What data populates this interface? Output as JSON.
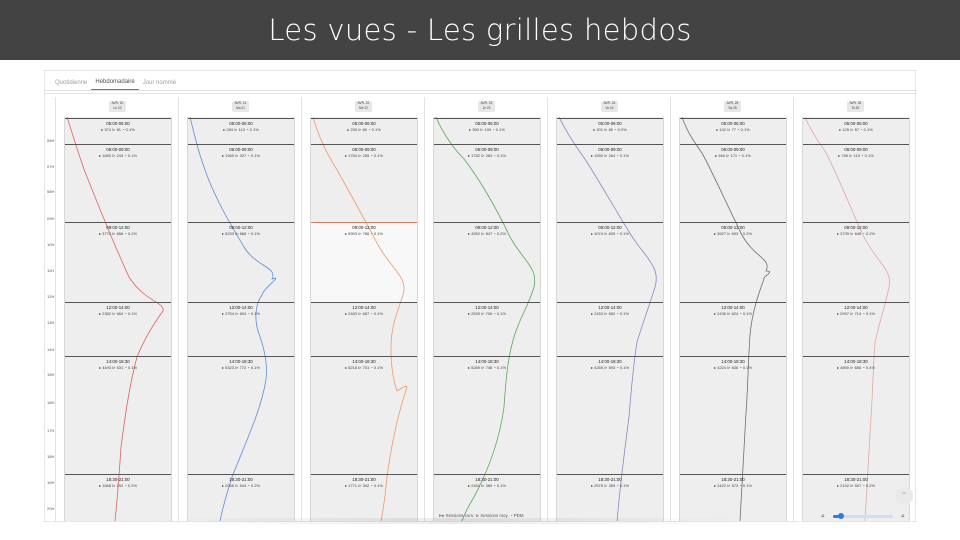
{
  "slide": {
    "title": "Les vues - Les grilles hebdos"
  },
  "tabs": [
    "Quotidienne",
    "Hebdomadaire",
    "Jour nommé"
  ],
  "active_tab": 1,
  "time_axis": [
    "06H",
    "07H",
    "08H",
    "09H",
    "10H",
    "11H",
    "12H",
    "13H",
    "14H",
    "15H",
    "16H",
    "17H",
    "18H",
    "19H",
    "20H"
  ],
  "days": [
    {
      "date": "AVR. 20",
      "label": "Lu 20",
      "color": "#d9655f",
      "bands": [
        {
          "time": "05:00-06:00",
          "cum": "374",
          "moy": "81",
          "pdm": "0.1%"
        },
        {
          "time": "06:00-09:00",
          "cum": "1680",
          "moy": "243",
          "pdm": "0.1%"
        },
        {
          "time": "09:00-12:00",
          "cum": "3774",
          "moy": "856",
          "pdm": "0.2%"
        },
        {
          "time": "12:00-14:00",
          "cum": "2382",
          "moy": "664",
          "pdm": "0.1%"
        },
        {
          "time": "14:00-18:30",
          "cum": "4493",
          "moy": "631",
          "pdm": "0.1%"
        },
        {
          "time": "18:30-21:00",
          "cum": "1668",
          "moy": "292",
          "pdm": "0.2%"
        }
      ]
    },
    {
      "date": "AVR. 21",
      "label": "Ma 21",
      "color": "#5d8ed3",
      "bands": [
        {
          "time": "05:00-06:00",
          "cum": "284",
          "moy": "113",
          "pdm": "0.1%"
        },
        {
          "time": "06:00-09:00",
          "cum": "1959",
          "moy": "327",
          "pdm": "0.1%"
        },
        {
          "time": "09:00-12:00",
          "cum": "5233",
          "moy": "868",
          "pdm": "0.1%"
        },
        {
          "time": "12:00-14:00",
          "cum": "2754",
          "moy": "694",
          "pdm": "0.1%"
        },
        {
          "time": "14:00-18:30",
          "cum": "5323",
          "moy": "772",
          "pdm": "0.1%"
        },
        {
          "time": "18:30-21:00",
          "cum": "2065",
          "moy": "544",
          "pdm": "0.2%"
        }
      ]
    },
    {
      "date": "AVR. 22",
      "label": "Me 22",
      "color": "#ee9a62",
      "bands": [
        {
          "time": "05:00-06:00",
          "cum": "230",
          "moy": "80",
          "pdm": "0.1%"
        },
        {
          "time": "06:00-09:00",
          "cum": "1754",
          "moy": "255",
          "pdm": "0.1%"
        },
        {
          "time": "09:00-12:00",
          "cum": "5993",
          "moy": "786",
          "pdm": "0.1%"
        },
        {
          "time": "12:00-14:00",
          "cum": "2463",
          "moy": "687",
          "pdm": "0.1%"
        },
        {
          "time": "14:00-18:30",
          "cum": "5218",
          "moy": "701",
          "pdm": "0.1%"
        },
        {
          "time": "18:30-21:00",
          "cum": "1771",
          "moy": "342",
          "pdm": "0.1%"
        }
      ]
    },
    {
      "date": "AVR. 23",
      "label": "Je 23",
      "color": "#5aa85a",
      "bands": [
        {
          "time": "05:00-06:00",
          "cum": "390",
          "moy": "100",
          "pdm": "0.1%"
        },
        {
          "time": "06:00-09:00",
          "cum": "1782",
          "moy": "283",
          "pdm": "0.1%"
        },
        {
          "time": "09:00-12:00",
          "cum": "4552",
          "moy": "847",
          "pdm": "0.2%"
        },
        {
          "time": "12:00-14:00",
          "cum": "2535",
          "moy": "705",
          "pdm": "0.1%"
        },
        {
          "time": "14:00-18:30",
          "cum": "5289",
          "moy": "748",
          "pdm": "0.1%"
        },
        {
          "time": "18:30-21:00",
          "cum": "2451",
          "moy": "380",
          "pdm": "0.1%"
        }
      ]
    },
    {
      "date": "AVR. 24",
      "label": "Ve 24",
      "color": "#8b86c4",
      "bands": [
        {
          "time": "05:00-06:00",
          "cum": "201",
          "moy": "80",
          "pdm": "0.0%"
        },
        {
          "time": "06:00-09:00",
          "cum": "1590",
          "moy": "264",
          "pdm": "0.1%"
        },
        {
          "time": "09:00-12:00",
          "cum": "4074",
          "moy": "845",
          "pdm": "0.1%"
        },
        {
          "time": "12:00-14:00",
          "cum": "2453",
          "moy": "682",
          "pdm": "0.1%"
        },
        {
          "time": "14:00-18:30",
          "cum": "4265",
          "moy": "693",
          "pdm": "0.1%"
        },
        {
          "time": "18:30-21:00",
          "cum": "2575",
          "moy": "359",
          "pdm": "0.1%"
        }
      ]
    },
    {
      "date": "AVR. 25",
      "label": "Sa 25",
      "color": "#6f6f6f",
      "bands": [
        {
          "time": "05:00-06:00",
          "cum": "142",
          "moy": "77",
          "pdm": "0.1%"
        },
        {
          "time": "06:00-09:00",
          "cum": "946",
          "moy": "171",
          "pdm": "0.1%"
        },
        {
          "time": "09:00-12:00",
          "cum": "3927",
          "moy": "693",
          "pdm": "0.2%"
        },
        {
          "time": "12:00-14:00",
          "cum": "2436",
          "moy": "624",
          "pdm": "0.1%"
        },
        {
          "time": "14:00-18:30",
          "cum": "4224",
          "moy": "636",
          "pdm": "0.1%"
        },
        {
          "time": "18:30-21:00",
          "cum": "2422",
          "moy": "573",
          "pdm": "0.1%"
        }
      ]
    },
    {
      "date": "AVR. 26",
      "label": "Di 26",
      "color": "#e2a8a6",
      "bands": [
        {
          "time": "05:00-06:00",
          "cum": "125",
          "moy": "57",
          "pdm": "0.1%"
        },
        {
          "time": "06:00-09:00",
          "cum": "796",
          "moy": "119",
          "pdm": "0.1%"
        },
        {
          "time": "09:00-12:00",
          "cum": "3739",
          "moy": "646",
          "pdm": "0.2%"
        },
        {
          "time": "12:00-14:00",
          "cum": "2997",
          "moy": "714",
          "pdm": "0.1%"
        },
        {
          "time": "14:00-18:30",
          "cum": "4890",
          "moy": "656",
          "pdm": "0.4%"
        },
        {
          "time": "18:30-21:00",
          "cum": "2192",
          "moy": "597",
          "pdm": "0.2%"
        }
      ]
    }
  ],
  "legend": {
    "cum": "Sessions cum.",
    "moy": "Sessions moy.",
    "pdm": "PDM"
  },
  "icons": {
    "zoom_out": "zoom-out-icon",
    "zoom_in": "zoom-in-icon",
    "scroll_top": "chevron-up-icon"
  }
}
